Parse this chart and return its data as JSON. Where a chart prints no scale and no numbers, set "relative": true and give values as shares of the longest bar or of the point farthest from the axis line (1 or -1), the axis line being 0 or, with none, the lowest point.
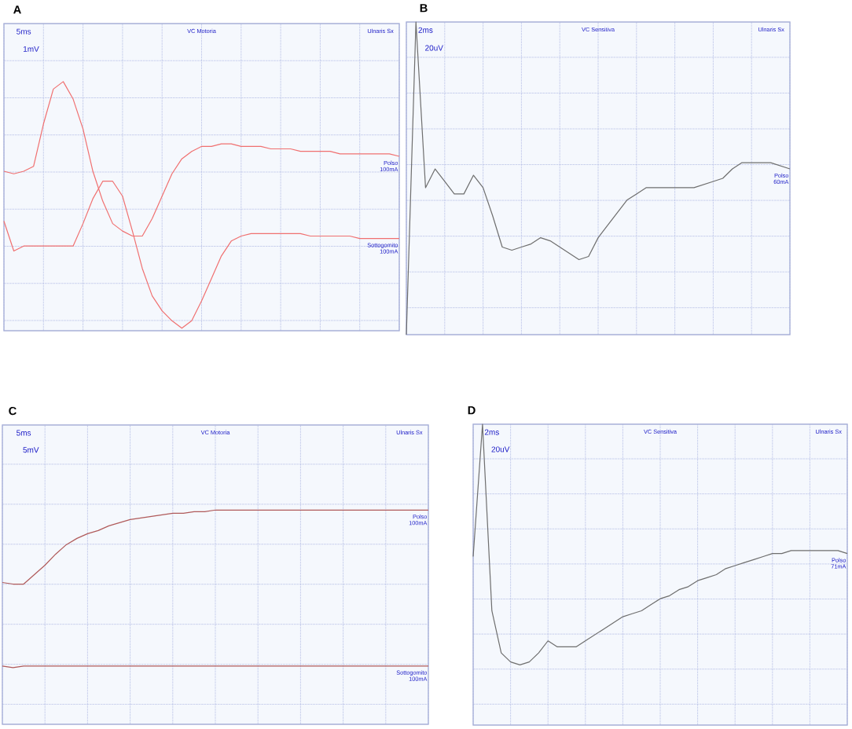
{
  "chart_data": [
    {
      "type": "line",
      "title": "A",
      "relative": true,
      "grid": true,
      "categories": [
        null,
        null,
        null,
        null,
        null,
        null,
        null,
        null,
        null,
        null,
        null,
        null,
        null,
        null,
        null,
        null,
        null,
        null,
        null,
        null,
        null,
        null,
        null,
        null,
        null,
        null,
        null,
        null,
        null,
        null,
        null,
        null,
        null,
        null,
        null,
        null,
        null,
        null,
        null,
        null,
        null
      ],
      "annotations": [
        "5ms",
        "1mV",
        "VC Motoria",
        "Ulnaris Sx",
        "100mA",
        "100mA"
      ],
      "series": [
        {
          "name": "Polso",
          "color": "#f07070",
          "values": [
            0.64,
            0.63,
            0.64,
            0.66,
            0.83,
            0.97,
            1.0,
            0.93,
            0.81,
            0.64,
            0.52,
            0.43,
            0.4,
            0.38,
            0.38,
            0.45,
            0.54,
            0.63,
            0.69,
            0.72,
            0.74,
            0.74,
            0.75,
            0.75,
            0.74,
            0.74,
            0.74,
            0.73,
            0.73,
            0.73,
            0.72,
            0.72,
            0.72,
            0.72,
            0.71,
            0.71,
            0.71,
            0.71,
            0.71,
            0.71,
            0.7
          ]
        },
        {
          "name": "Sottogomito",
          "color": "#f07070",
          "values": [
            0.44,
            0.32,
            0.34,
            0.34,
            0.34,
            0.34,
            0.34,
            0.34,
            0.43,
            0.53,
            0.6,
            0.6,
            0.54,
            0.4,
            0.25,
            0.14,
            0.08,
            0.04,
            0.01,
            0.04,
            0.12,
            0.21,
            0.3,
            0.36,
            0.38,
            0.39,
            0.39,
            0.39,
            0.39,
            0.39,
            0.39,
            0.38,
            0.38,
            0.38,
            0.38,
            0.38,
            0.37,
            0.37,
            0.37,
            0.37,
            0.37
          ]
        }
      ]
    },
    {
      "type": "line",
      "title": "B",
      "relative": true,
      "grid": true,
      "categories": [
        null,
        null,
        null,
        null,
        null,
        null,
        null,
        null,
        null,
        null,
        null,
        null,
        null,
        null,
        null,
        null,
        null,
        null,
        null,
        null,
        null,
        null,
        null,
        null,
        null,
        null,
        null,
        null,
        null,
        null,
        null,
        null,
        null,
        null,
        null,
        null,
        null,
        null,
        null,
        null,
        null
      ],
      "annotations": [
        "2ms",
        "20uV",
        "VC Sensitiva",
        "Ulnaris Sx",
        "60mA"
      ],
      "series": [
        {
          "name": "Polso",
          "color": "#6e6e6e",
          "values": [
            0.0,
            1.0,
            0.47,
            0.53,
            0.49,
            0.45,
            0.45,
            0.51,
            0.47,
            0.38,
            0.28,
            0.27,
            0.28,
            0.29,
            0.31,
            0.3,
            0.28,
            0.26,
            0.24,
            0.25,
            0.31,
            0.35,
            0.39,
            0.43,
            0.45,
            0.47,
            0.47,
            0.47,
            0.47,
            0.47,
            0.47,
            0.48,
            0.49,
            0.5,
            0.53,
            0.55,
            0.55,
            0.55,
            0.55,
            0.54,
            0.53
          ]
        }
      ]
    },
    {
      "type": "line",
      "title": "C",
      "relative": true,
      "grid": true,
      "categories": [
        null,
        null,
        null,
        null,
        null,
        null,
        null,
        null,
        null,
        null,
        null,
        null,
        null,
        null,
        null,
        null,
        null,
        null,
        null,
        null,
        null,
        null,
        null,
        null,
        null,
        null,
        null,
        null,
        null,
        null,
        null,
        null,
        null,
        null,
        null,
        null,
        null,
        null,
        null,
        null,
        null
      ],
      "annotations": [
        "5ms",
        "5mV",
        "VC Motoria",
        "Ulnaris Sx",
        "100mA",
        "100mA"
      ],
      "series": [
        {
          "name": "Polso",
          "color": "#b05a5a",
          "values": [
            0.54,
            0.53,
            0.53,
            0.59,
            0.65,
            0.72,
            0.78,
            0.82,
            0.85,
            0.87,
            0.9,
            0.92,
            0.94,
            0.95,
            0.96,
            0.97,
            0.98,
            0.98,
            0.99,
            0.99,
            1.0,
            1.0,
            1.0,
            1.0,
            1.0,
            1.0,
            1.0,
            1.0,
            1.0,
            1.0,
            1.0,
            1.0,
            1.0,
            1.0,
            1.0,
            1.0,
            1.0,
            1.0,
            1.0,
            1.0,
            1.0
          ]
        },
        {
          "name": "Sottogomito",
          "color": "#b05a5a",
          "values": [
            0.01,
            0.0,
            0.01,
            0.01,
            0.01,
            0.01,
            0.01,
            0.01,
            0.01,
            0.01,
            0.01,
            0.01,
            0.01,
            0.01,
            0.01,
            0.01,
            0.01,
            0.01,
            0.01,
            0.01,
            0.01,
            0.01,
            0.01,
            0.01,
            0.01,
            0.01,
            0.01,
            0.01,
            0.01,
            0.01,
            0.01,
            0.01,
            0.01,
            0.01,
            0.01,
            0.01,
            0.01,
            0.01,
            0.01,
            0.01,
            0.01
          ]
        }
      ]
    },
    {
      "type": "line",
      "title": "D",
      "relative": true,
      "grid": true,
      "categories": [
        null,
        null,
        null,
        null,
        null,
        null,
        null,
        null,
        null,
        null,
        null,
        null,
        null,
        null,
        null,
        null,
        null,
        null,
        null,
        null,
        null,
        null,
        null,
        null,
        null,
        null,
        null,
        null,
        null,
        null,
        null,
        null,
        null,
        null,
        null,
        null,
        null,
        null,
        null,
        null,
        null
      ],
      "annotations": [
        "2ms",
        "20uV",
        "VC Sensitiva",
        "Ulnaris Sx",
        "71mA"
      ],
      "series": [
        {
          "name": "Polso",
          "color": "#6e6e6e",
          "values": [
            0.56,
            1.0,
            0.38,
            0.24,
            0.21,
            0.2,
            0.21,
            0.24,
            0.28,
            0.26,
            0.26,
            0.26,
            0.28,
            0.3,
            0.32,
            0.34,
            0.36,
            0.37,
            0.38,
            0.4,
            0.42,
            0.43,
            0.45,
            0.46,
            0.48,
            0.49,
            0.5,
            0.52,
            0.53,
            0.54,
            0.55,
            0.56,
            0.57,
            0.57,
            0.58,
            0.58,
            0.58,
            0.58,
            0.58,
            0.58,
            0.57
          ]
        }
      ]
    }
  ]
}
